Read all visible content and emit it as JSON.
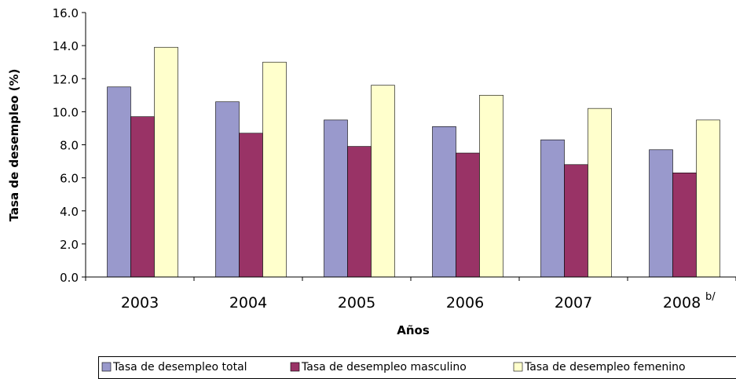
{
  "chart_data": {
    "type": "bar",
    "title": "",
    "xlabel": "Años",
    "ylabel": "Tasa de desempleo (%)",
    "ylim": [
      0,
      16
    ],
    "yticks": [
      "0.0",
      "2.0",
      "4.0",
      "6.0",
      "8.0",
      "10.0",
      "12.0",
      "14.0",
      "16.0"
    ],
    "categories": [
      "2003",
      "2004",
      "2005",
      "2006",
      "2007",
      "2008"
    ],
    "category_notes": [
      "",
      "",
      "",
      "",
      "",
      "b/"
    ],
    "series": [
      {
        "name": "Tasa de desempleo total",
        "color": "#9999cc",
        "values": [
          11.5,
          10.6,
          9.5,
          9.1,
          8.3,
          7.7
        ]
      },
      {
        "name": "Tasa de desempleo masculino",
        "color": "#993366",
        "values": [
          9.7,
          8.7,
          7.9,
          7.5,
          6.8,
          6.3
        ]
      },
      {
        "name": "Tasa de desempleo femenino",
        "color": "#ffffcc",
        "values": [
          13.9,
          13.0,
          11.6,
          11.0,
          10.2,
          9.5
        ]
      }
    ],
    "grid": false,
    "legend_position": "bottom"
  }
}
